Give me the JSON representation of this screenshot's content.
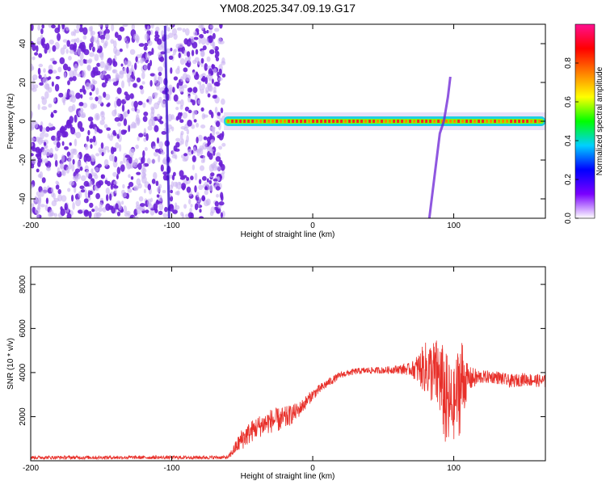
{
  "title": "YM08.2025.347.09.19.G17",
  "colors": {
    "line": "#e8302a",
    "frame": "#000000",
    "scatter": "#6a1fd6",
    "scatter_light": "#c9b3f2"
  },
  "chart_data": [
    {
      "type": "heatmap",
      "name": "spectrogram",
      "xlabel": "Height of straight line (km)",
      "ylabel": "Frequency (Hz)",
      "xlim": [
        -200,
        165
      ],
      "ylim": [
        -50,
        50
      ],
      "xticks": [
        -200,
        -100,
        0,
        100
      ],
      "yticks": [
        -40,
        -20,
        0,
        20,
        40
      ],
      "xtick_labels": [
        "-200",
        "-100",
        "0",
        "100"
      ],
      "ytick_labels": [
        "-40",
        "-20",
        "0",
        "20",
        "40"
      ],
      "noise_region_x": [
        -200,
        -63
      ],
      "carrier_frequency_hz": 0,
      "carrier_x_range": [
        -63,
        165
      ],
      "colorbar": {
        "label": "Normalized spectral amplitude",
        "range": [
          0.0,
          1.0
        ],
        "ticks": [
          0.0,
          0.2,
          0.4,
          0.6,
          0.8
        ],
        "tick_labels": [
          "0.0",
          "0.2",
          "0.4",
          "0.6",
          "0.8"
        ],
        "stops": [
          "#ffffff",
          "#7a00ff",
          "#0000ff",
          "#00d0ff",
          "#00ff00",
          "#ffff00",
          "#ff7f00",
          "#ff0000",
          "#ff1090"
        ]
      }
    },
    {
      "type": "line",
      "name": "snr",
      "xlabel": "Height of straight line (km)",
      "ylabel": "SNR (10 * v/v)",
      "xlim": [
        -200,
        165
      ],
      "ylim": [
        0,
        8800
      ],
      "xticks": [
        -200,
        -100,
        0,
        100
      ],
      "yticks": [
        2000,
        4000,
        6000,
        8000
      ],
      "xtick_labels": [
        "-200",
        "-100",
        "0",
        "100"
      ],
      "ytick_labels": [
        "2000",
        "4000",
        "6000",
        "8000"
      ],
      "envelope_x": [
        -200,
        -60,
        -50,
        -40,
        -30,
        -20,
        -10,
        0,
        10,
        20,
        30,
        40,
        50,
        60,
        70,
        80,
        90,
        95,
        100,
        105,
        110,
        120,
        130,
        140,
        150,
        165
      ],
      "envelope_y": [
        150,
        150,
        1000,
        1500,
        1800,
        1900,
        2300,
        3000,
        3500,
        3900,
        4050,
        4100,
        4100,
        4150,
        4150,
        4200,
        3800,
        2500,
        2500,
        3600,
        3700,
        3800,
        3800,
        3600,
        3700,
        3600
      ],
      "noise_amplitude": [
        80,
        80,
        500,
        500,
        550,
        550,
        350,
        250,
        200,
        150,
        150,
        150,
        150,
        200,
        300,
        1200,
        1800,
        2400,
        1600,
        2400,
        600,
        300,
        300,
        300,
        300,
        300
      ]
    }
  ]
}
